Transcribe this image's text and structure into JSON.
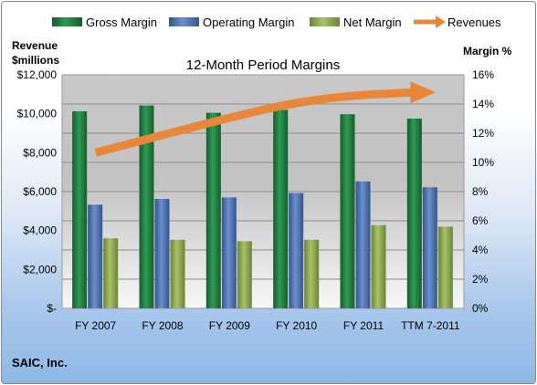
{
  "chart_data": {
    "type": "bar",
    "title": "12-Month Period Margins",
    "categories": [
      "FY 2007",
      "FY 2008",
      "FY 2009",
      "FY 2010",
      "FY 2011",
      "TTM 7-2011"
    ],
    "series": [
      {
        "name": "Gross Margin",
        "axis": "right",
        "values": [
          13.5,
          13.9,
          13.4,
          13.6,
          13.3,
          13.0
        ],
        "color": "#1e7a3c"
      },
      {
        "name": "Operating Margin",
        "axis": "right",
        "values": [
          7.1,
          7.5,
          7.6,
          7.9,
          8.7,
          8.3
        ],
        "color": "#4a6fb0"
      },
      {
        "name": "Net Margin",
        "axis": "right",
        "values": [
          4.8,
          4.7,
          4.6,
          4.7,
          5.7,
          5.6
        ],
        "color": "#8faa4c"
      },
      {
        "name": "Revenues",
        "axis": "left",
        "type": "line",
        "values": [
          8000,
          8900,
          9800,
          10600,
          11000,
          11100
        ],
        "color": "#e8873a"
      }
    ],
    "left_axis": {
      "label_line1": "Revenue",
      "label_line2": "$millions",
      "ylim": [
        0,
        12000
      ],
      "ticks": [
        "$-",
        "$2,000",
        "$4,000",
        "$6,000",
        "$8,000",
        "$10,000",
        "$12,000"
      ]
    },
    "right_axis": {
      "label": "Margin %",
      "ylim": [
        0,
        16
      ],
      "ticks": [
        "0%",
        "2%",
        "4%",
        "6%",
        "8%",
        "10%",
        "12%",
        "14%",
        "16%"
      ]
    },
    "grid": true,
    "legend_position": "top"
  },
  "footer": "SAIC, Inc."
}
